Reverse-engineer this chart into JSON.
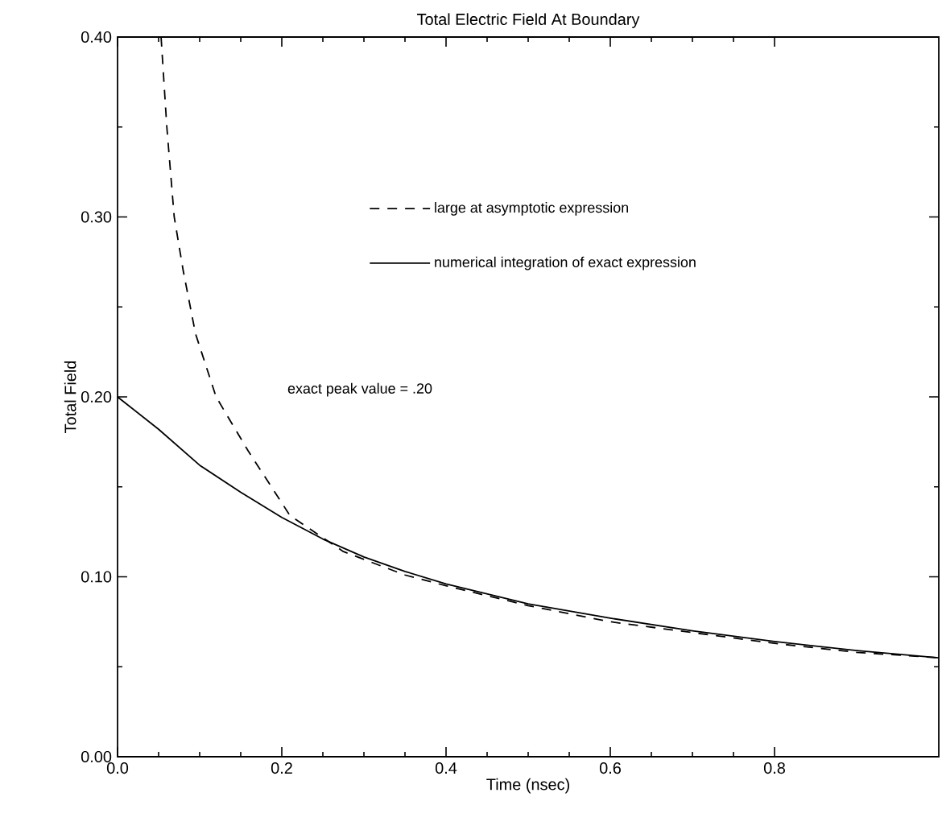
{
  "chart_data": {
    "type": "line",
    "title": "Total Electric Field At Boundary",
    "xlabel": "Time (nsec)",
    "ylabel": "Total Field",
    "xlim": [
      0,
      1.0
    ],
    "ylim": [
      0,
      0.4
    ],
    "xticks": [
      {
        "value": 0,
        "label": "0.0"
      },
      0.2,
      0.4,
      0.6,
      0.8
    ],
    "yticks": [
      {
        "value": 0,
        "label": "0.00"
      },
      {
        "value": 0.1,
        "label": "0.10"
      },
      {
        "value": 0.2,
        "label": "0.20"
      },
      {
        "value": 0.3,
        "label": "0.30"
      },
      {
        "value": 0.4,
        "label": "0.40"
      }
    ],
    "legend": "top",
    "grid": false,
    "marker": "none",
    "series": [
      {
        "name": "large at asymptotic expression",
        "color": "#000000",
        "line_style": "dashed",
        "x": [
          0.053,
          0.06,
          0.069,
          0.08,
          0.095,
          0.12,
          0.159,
          0.21,
          0.275,
          0.35,
          0.4,
          0.5,
          0.6,
          0.7,
          0.8,
          0.9,
          1.0
        ],
        "values": [
          0.4,
          0.35,
          0.3,
          0.27,
          0.235,
          0.2,
          0.17,
          0.134,
          0.114,
          0.101,
          0.095,
          0.084,
          0.075,
          0.069,
          0.063,
          0.058,
          0.055
        ]
      },
      {
        "name": "numerical integration of exact expression",
        "color": "#000000",
        "line_style": "solid",
        "x": [
          0,
          0.05,
          0.1,
          0.15,
          0.2,
          0.25,
          0.3,
          0.35,
          0.4,
          0.5,
          0.6,
          0.7,
          0.8,
          0.9,
          1.0
        ],
        "values": [
          0.2,
          0.182,
          0.162,
          0.147,
          0.133,
          0.121,
          0.111,
          0.103,
          0.096,
          0.085,
          0.077,
          0.07,
          0.064,
          0.059,
          0.055
        ]
      }
    ],
    "annotations": [
      "exact peak value = .20"
    ]
  }
}
